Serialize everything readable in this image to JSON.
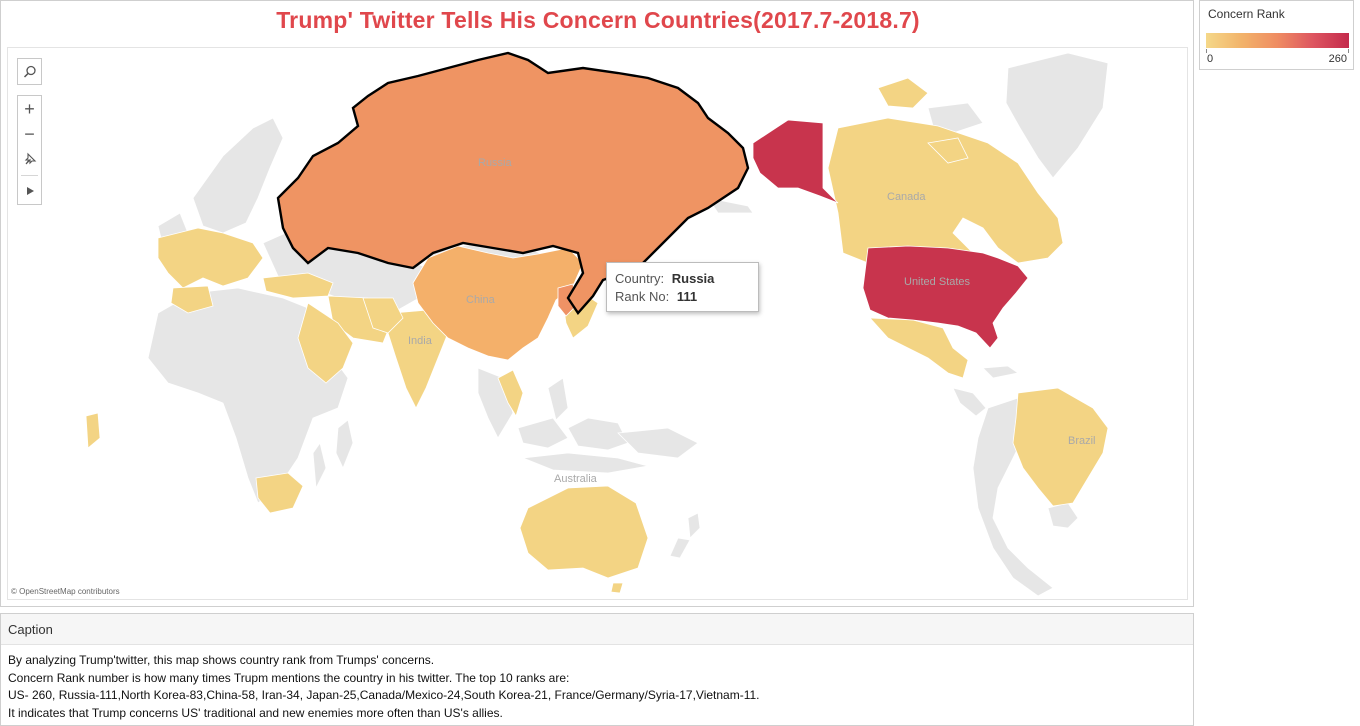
{
  "title": "Trump' Twitter Tells His Concern Countries(2017.7-2018.7)",
  "legend": {
    "title": "Concern Rank",
    "min_label": "0",
    "max_label": "260",
    "gradient_colors": [
      "#f5d889",
      "#f2b36a",
      "#ef8c62",
      "#dd5560",
      "#c42a4c"
    ]
  },
  "map": {
    "attribution": "© OpenStreetMap contributors",
    "no_data_color": "#e6e6e6",
    "country_labels": [
      "Russia",
      "China",
      "India",
      "Australia",
      "Canada",
      "United States",
      "Brazil"
    ],
    "highlighted_country": "Russia"
  },
  "toolbar": {
    "search_icon": "search-icon",
    "zoom_in": "+",
    "zoom_out": "−",
    "pin_icon": "pin-icon",
    "expand_icon": "play-icon"
  },
  "tooltip": {
    "country_label": "Country:",
    "country_value": "Russia",
    "rank_label": "Rank No:",
    "rank_value": "111"
  },
  "caption": {
    "header": "Caption",
    "lines": [
      "By analyzing Trump'twitter, this map shows country rank from Trumps' concerns.",
      "Concern Rank number is how many times Trupm mentions the country in his twitter. The top 10 ranks are:",
      "US- 260, Russia-111,North Korea-83,China-58, Iran-34, Japan-25,Canada/Mexico-24,South Korea-21, France/Germany/Syria-17,Vietnam-11.",
      "It indicates that Trump concerns US' traditional and new enemies more often than US's allies."
    ]
  }
}
